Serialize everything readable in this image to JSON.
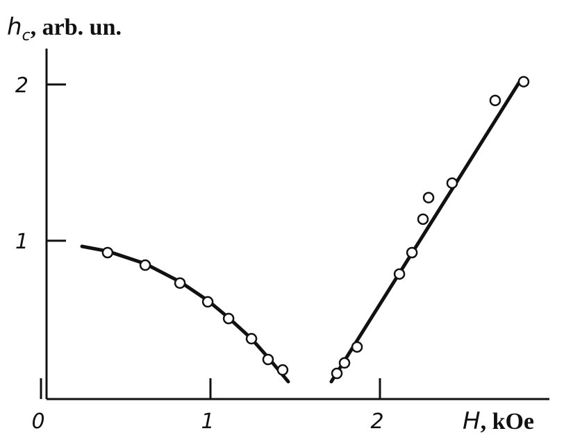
{
  "chart_data": {
    "type": "scatter",
    "y_label": {
      "symbol": "h",
      "subscript": "c",
      "unit": ", arb. un."
    },
    "x_label": {
      "symbol": "H",
      "unit": ", kOe"
    },
    "xlim": [
      0,
      3.0
    ],
    "ylim": [
      0,
      2.23
    ],
    "xticks": [
      0,
      1,
      2
    ],
    "yticks": [
      1,
      2
    ],
    "color": "#111111",
    "points": {
      "x": [
        0.393,
        0.615,
        0.82,
        0.984,
        1.107,
        1.242,
        1.34,
        1.426,
        1.746,
        1.791,
        1.865,
        2.115,
        2.189,
        2.254,
        2.287,
        2.426,
        2.68,
        2.848
      ],
      "y": [
        0.924,
        0.844,
        0.729,
        0.609,
        0.502,
        0.373,
        0.24,
        0.173,
        0.151,
        0.218,
        0.32,
        0.787,
        0.924,
        1.138,
        1.276,
        1.369,
        1.898,
        2.018
      ]
    },
    "fits": [
      {
        "x": [
          0.242,
          0.393,
          0.615,
          0.82,
          0.984,
          1.107,
          1.242,
          1.34,
          1.459
        ],
        "y": [
          0.964,
          0.933,
          0.853,
          0.738,
          0.618,
          0.507,
          0.373,
          0.253,
          0.098
        ]
      },
      {
        "x": [
          1.713,
          2.824
        ],
        "y": [
          0.098,
          2.018
        ]
      }
    ]
  }
}
